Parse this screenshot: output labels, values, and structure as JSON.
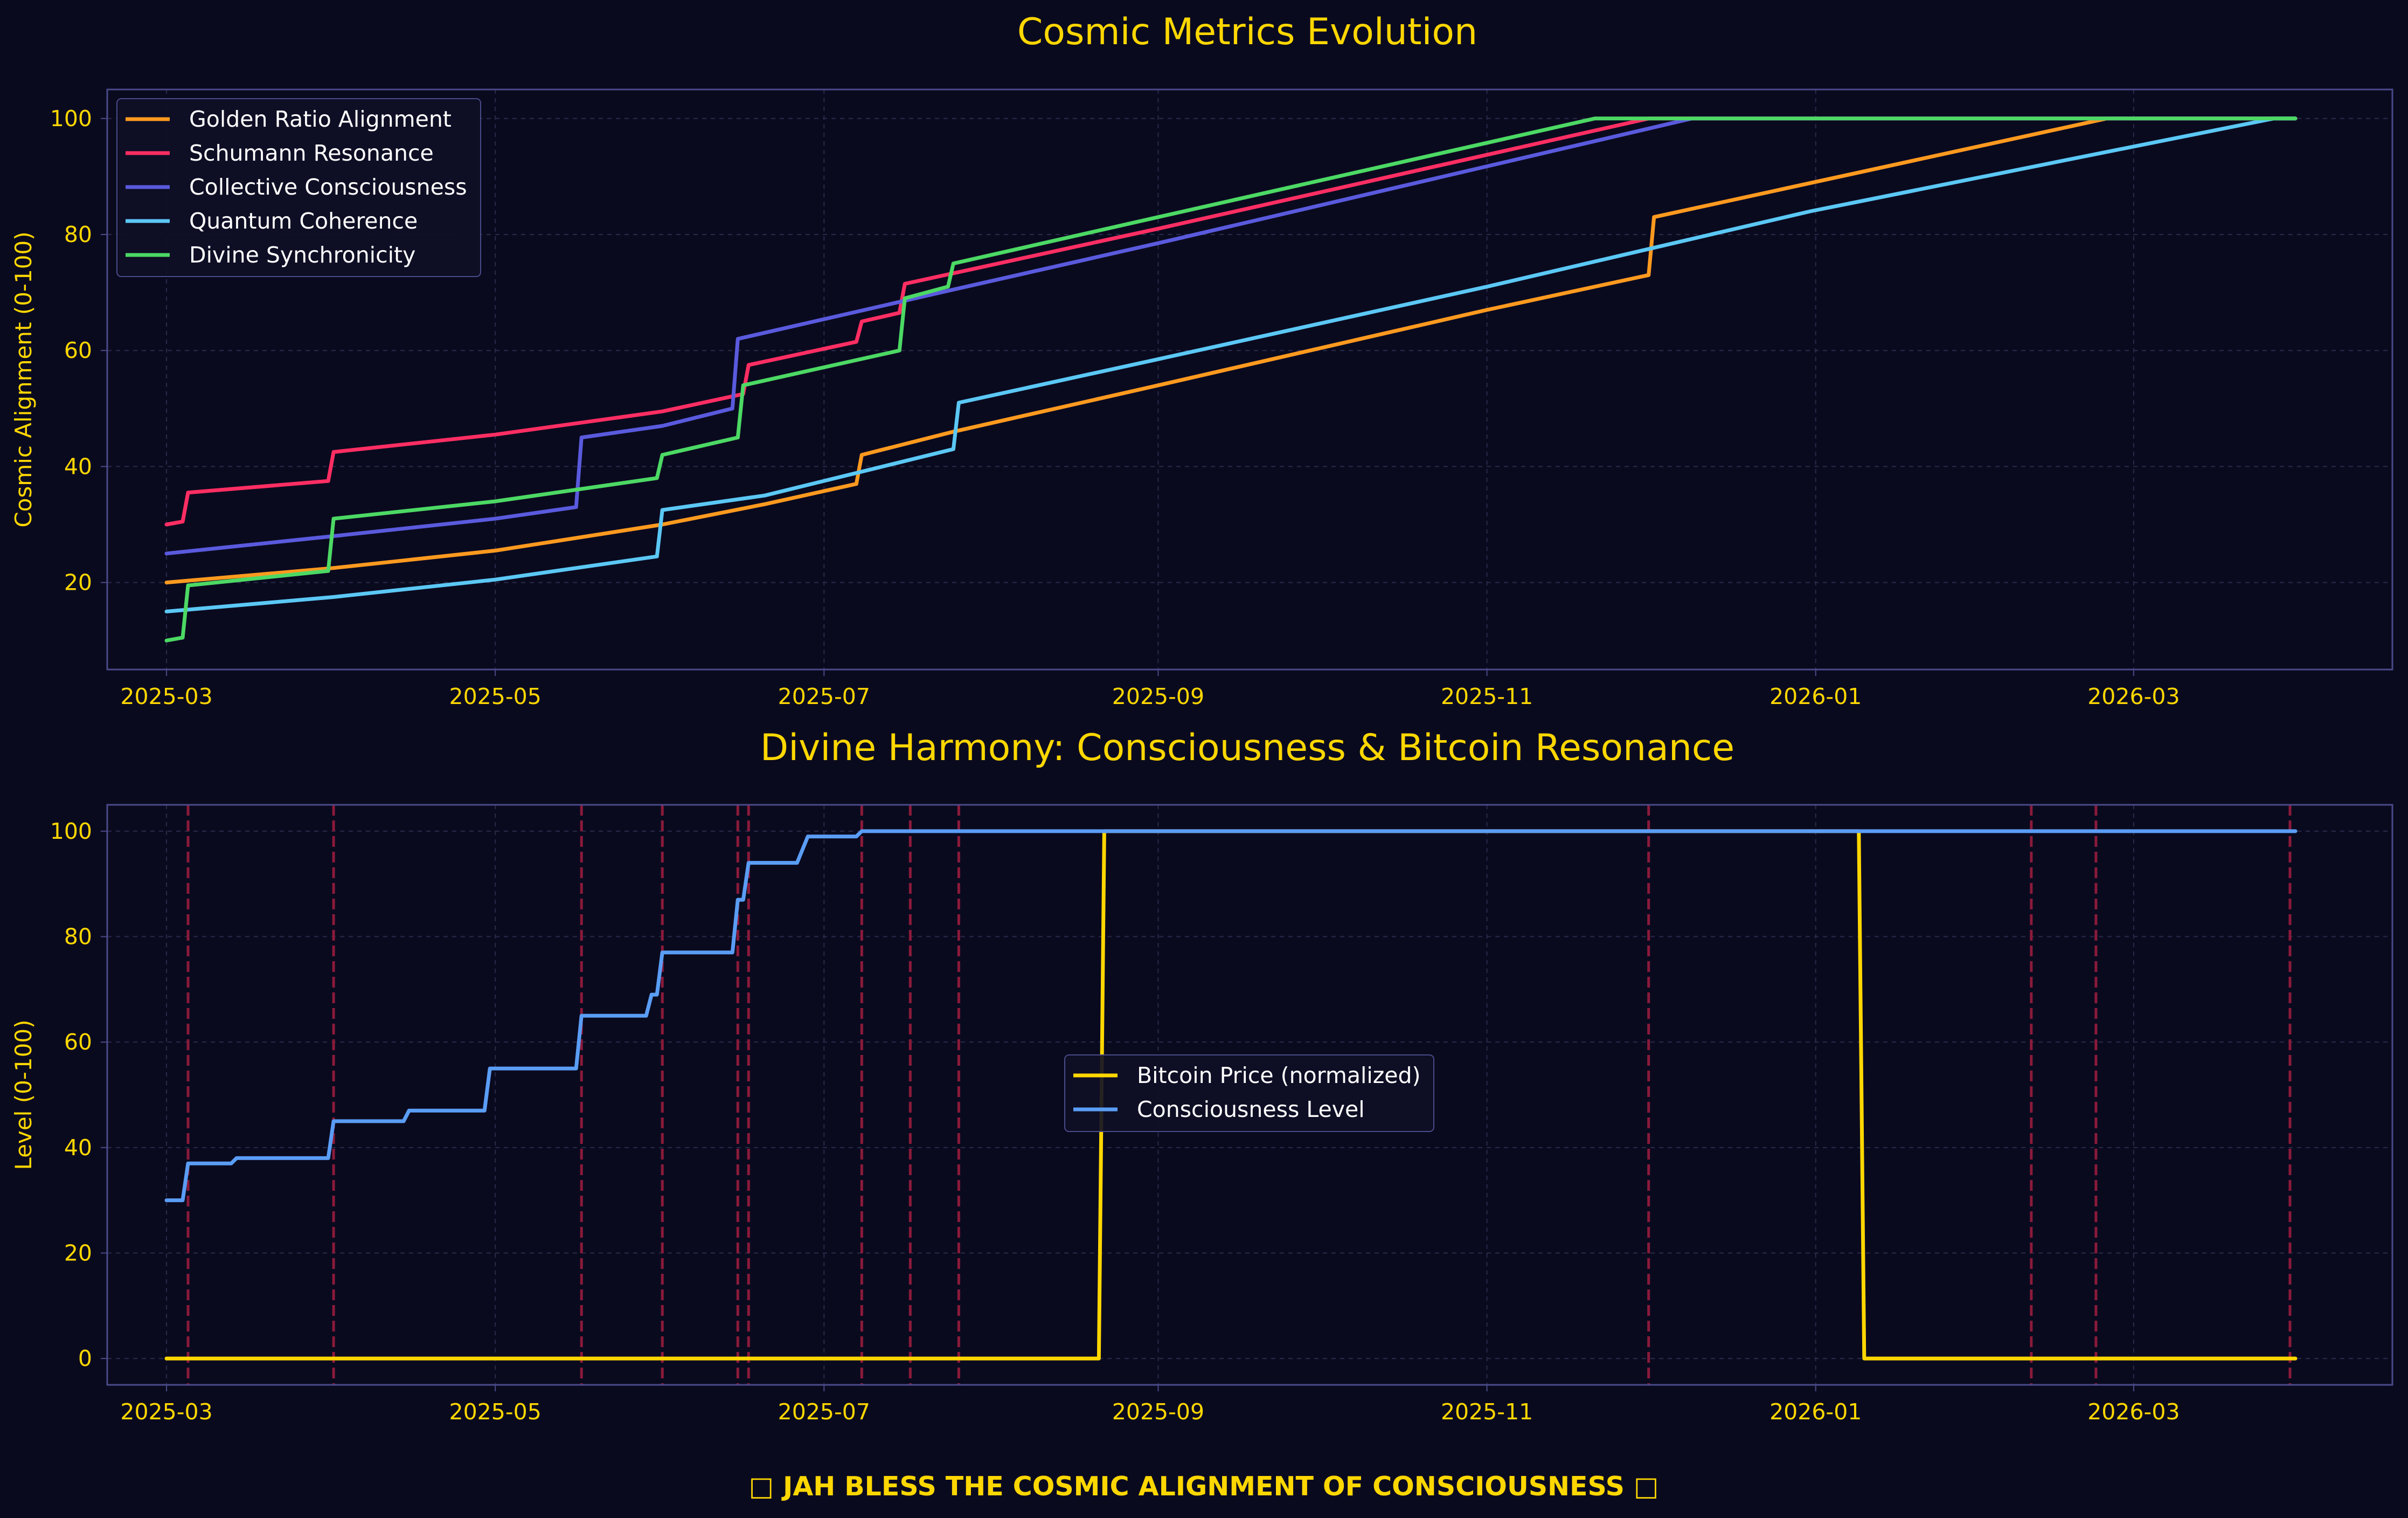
{
  "footer": "□ JAH BLESS THE COSMIC ALIGNMENT OF CONSCIOUSNESS □",
  "colors": {
    "background": "#0a0a1f",
    "text": "#ffd700",
    "spine": "#4a4a8a",
    "grid": "#2a2a4a",
    "event_line": "#8b1a3a"
  },
  "chart_data": [
    {
      "type": "line",
      "title": "Cosmic Metrics Evolution",
      "xlabel": "",
      "ylabel": "Cosmic Alignment (0-100)",
      "xlim": [
        "2025-02-18",
        "2026-04-18"
      ],
      "ylim": [
        5,
        105
      ],
      "x_ticks": [
        "2025-03",
        "2025-05",
        "2025-07",
        "2025-09",
        "2025-11",
        "2026-01",
        "2026-03"
      ],
      "y_ticks": [
        20,
        40,
        60,
        80,
        100
      ],
      "grid": true,
      "legend_position": "upper left",
      "series": [
        {
          "name": "Golden Ratio Alignment",
          "color": "#ff9a1f",
          "points": [
            [
              "2025-03-01",
              20
            ],
            [
              "2025-04-01",
              22.5
            ],
            [
              "2025-05-01",
              25.5
            ],
            [
              "2025-06-01",
              30
            ],
            [
              "2025-06-20",
              33.5
            ],
            [
              "2025-07-07",
              37
            ],
            [
              "2025-07-08",
              42
            ],
            [
              "2025-07-25",
              46
            ],
            [
              "2025-09-01",
              54
            ],
            [
              "2025-11-01",
              67
            ],
            [
              "2025-12-01",
              73
            ],
            [
              "2025-12-02",
              83
            ],
            [
              "2026-02-24",
              100
            ],
            [
              "2026-03-31",
              100
            ]
          ]
        },
        {
          "name": "Schumann Resonance",
          "color": "#ff2e63",
          "points": [
            [
              "2025-03-01",
              30
            ],
            [
              "2025-03-04",
              30.5
            ],
            [
              "2025-03-05",
              35.5
            ],
            [
              "2025-03-31",
              37.5
            ],
            [
              "2025-04-01",
              42.5
            ],
            [
              "2025-05-01",
              45.5
            ],
            [
              "2025-06-01",
              49.5
            ],
            [
              "2025-06-16",
              52.5
            ],
            [
              "2025-06-17",
              57.5
            ],
            [
              "2025-07-07",
              61.5
            ],
            [
              "2025-07-08",
              65
            ],
            [
              "2025-07-15",
              66.5
            ],
            [
              "2025-07-16",
              71.5
            ],
            [
              "2025-09-01",
              81
            ],
            [
              "2025-12-01",
              100
            ],
            [
              "2026-03-31",
              100
            ]
          ]
        },
        {
          "name": "Collective Consciousness",
          "color": "#5a5ade",
          "points": [
            [
              "2025-03-01",
              25
            ],
            [
              "2025-04-01",
              28
            ],
            [
              "2025-05-01",
              31
            ],
            [
              "2025-05-16",
              33
            ],
            [
              "2025-05-17",
              45
            ],
            [
              "2025-06-01",
              47
            ],
            [
              "2025-06-14",
              50
            ],
            [
              "2025-06-15",
              62
            ],
            [
              "2025-07-25",
              70.5
            ],
            [
              "2025-09-01",
              78.5
            ],
            [
              "2025-12-09",
              100
            ],
            [
              "2026-03-31",
              100
            ]
          ]
        },
        {
          "name": "Quantum Coherence",
          "color": "#5bc8f5",
          "points": [
            [
              "2025-03-01",
              15
            ],
            [
              "2025-04-01",
              17.5
            ],
            [
              "2025-05-01",
              20.5
            ],
            [
              "2025-05-31",
              24.5
            ],
            [
              "2025-06-01",
              32.5
            ],
            [
              "2025-06-20",
              35
            ],
            [
              "2025-07-25",
              43
            ],
            [
              "2025-07-26",
              51
            ],
            [
              "2025-09-01",
              58.5
            ],
            [
              "2025-11-01",
              71
            ],
            [
              "2025-12-31",
              84
            ],
            [
              "2026-03-27",
              100
            ],
            [
              "2026-03-31",
              100
            ]
          ]
        },
        {
          "name": "Divine Synchronicity",
          "color": "#4cd964",
          "points": [
            [
              "2025-03-01",
              10
            ],
            [
              "2025-03-04",
              10.5
            ],
            [
              "2025-03-05",
              19.5
            ],
            [
              "2025-03-31",
              22
            ],
            [
              "2025-04-01",
              31
            ],
            [
              "2025-05-01",
              34
            ],
            [
              "2025-05-31",
              38
            ],
            [
              "2025-06-01",
              42
            ],
            [
              "2025-06-15",
              45
            ],
            [
              "2025-06-16",
              54
            ],
            [
              "2025-07-15",
              60
            ],
            [
              "2025-07-16",
              69
            ],
            [
              "2025-07-24",
              71
            ],
            [
              "2025-07-25",
              75
            ],
            [
              "2025-09-01",
              83
            ],
            [
              "2025-11-21",
              100
            ],
            [
              "2026-03-31",
              100
            ]
          ]
        }
      ]
    },
    {
      "type": "line",
      "title": "Divine Harmony: Consciousness & Bitcoin Resonance",
      "xlabel": "",
      "ylabel": "Level (0-100)",
      "xlim": [
        "2025-02-18",
        "2026-04-18"
      ],
      "ylim": [
        -5,
        105
      ],
      "x_ticks": [
        "2025-03",
        "2025-05",
        "2025-07",
        "2025-09",
        "2025-11",
        "2026-01",
        "2026-03"
      ],
      "y_ticks": [
        0,
        20,
        40,
        60,
        80,
        100
      ],
      "grid": true,
      "legend_position": "center",
      "event_dates": [
        "2025-03-05",
        "2025-04-01",
        "2025-05-17",
        "2025-06-01",
        "2025-06-15",
        "2025-06-17",
        "2025-07-08",
        "2025-07-17",
        "2025-07-26",
        "2025-12-01",
        "2026-02-10",
        "2026-02-22",
        "2026-03-30"
      ],
      "series": [
        {
          "name": "Bitcoin Price (normalized)",
          "color": "#ffd700",
          "points": [
            [
              "2025-03-01",
              0
            ],
            [
              "2025-08-21",
              0
            ],
            [
              "2025-08-22",
              100
            ],
            [
              "2026-01-09",
              100
            ],
            [
              "2026-01-10",
              0
            ],
            [
              "2026-03-31",
              0
            ]
          ]
        },
        {
          "name": "Consciousness Level",
          "color": "#5a9df5",
          "points": [
            [
              "2025-03-01",
              30
            ],
            [
              "2025-03-04",
              30
            ],
            [
              "2025-03-05",
              37
            ],
            [
              "2025-03-13",
              37
            ],
            [
              "2025-03-14",
              38
            ],
            [
              "2025-03-31",
              38
            ],
            [
              "2025-04-01",
              45
            ],
            [
              "2025-04-14",
              45
            ],
            [
              "2025-04-15",
              47
            ],
            [
              "2025-04-29",
              47
            ],
            [
              "2025-04-30",
              55
            ],
            [
              "2025-05-16",
              55
            ],
            [
              "2025-05-17",
              65
            ],
            [
              "2025-05-29",
              65
            ],
            [
              "2025-05-30",
              69
            ],
            [
              "2025-05-31",
              69
            ],
            [
              "2025-06-01",
              77
            ],
            [
              "2025-06-14",
              77
            ],
            [
              "2025-06-15",
              87
            ],
            [
              "2025-06-16",
              87
            ],
            [
              "2025-06-17",
              94
            ],
            [
              "2025-06-26",
              94
            ],
            [
              "2025-06-28",
              99
            ],
            [
              "2025-07-07",
              99
            ],
            [
              "2025-07-08",
              100
            ],
            [
              "2026-03-31",
              100
            ]
          ]
        }
      ]
    }
  ]
}
